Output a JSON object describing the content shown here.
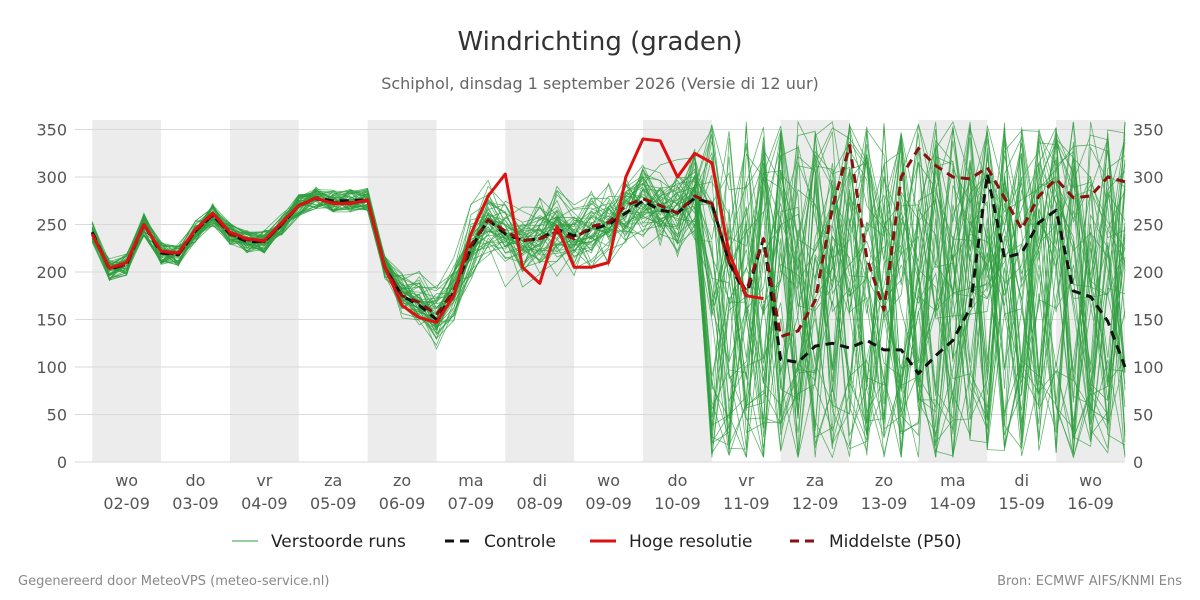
{
  "chart_data": {
    "type": "line",
    "title": "Windrichting (graden)",
    "subtitle": "Schiphol, dinsdag  1 september 2026 (Versie di 12 uur)",
    "ylim": [
      0,
      360
    ],
    "y_ticks": [
      0,
      50,
      100,
      150,
      200,
      250,
      300,
      350
    ],
    "x_day_labels": [
      {
        "dow": "wo",
        "date": "02-09",
        "day": 1
      },
      {
        "dow": "do",
        "date": "03-09",
        "day": 2
      },
      {
        "dow": "vr",
        "date": "04-09",
        "day": 3
      },
      {
        "dow": "za",
        "date": "05-09",
        "day": 4
      },
      {
        "dow": "zo",
        "date": "06-09",
        "day": 5
      },
      {
        "dow": "ma",
        "date": "07-09",
        "day": 6
      },
      {
        "dow": "di",
        "date": "08-09",
        "day": 7
      },
      {
        "dow": "wo",
        "date": "09-09",
        "day": 8
      },
      {
        "dow": "do",
        "date": "10-09",
        "day": 9
      },
      {
        "dow": "vr",
        "date": "11-09",
        "day": 10
      },
      {
        "dow": "za",
        "date": "12-09",
        "day": 11
      },
      {
        "dow": "zo",
        "date": "13-09",
        "day": 12
      },
      {
        "dow": "ma",
        "date": "14-09",
        "day": 13
      },
      {
        "dow": "di",
        "date": "15-09",
        "day": 14
      },
      {
        "dow": "wo",
        "date": "16-09",
        "day": 15
      }
    ],
    "shaded_days": [
      1,
      3,
      5,
      7,
      9,
      11,
      13,
      15
    ],
    "x_range_days": [
      0.25,
      15.5
    ],
    "series": [
      {
        "name": "Controle",
        "color": "#111111",
        "style": "dashed",
        "points": [
          [
            0.5,
            242
          ],
          [
            0.75,
            203
          ],
          [
            1.0,
            208
          ],
          [
            1.25,
            250
          ],
          [
            1.5,
            220
          ],
          [
            1.75,
            218
          ],
          [
            2.0,
            243
          ],
          [
            2.25,
            260
          ],
          [
            2.5,
            240
          ],
          [
            2.75,
            232
          ],
          [
            3.0,
            232
          ],
          [
            3.25,
            250
          ],
          [
            3.5,
            270
          ],
          [
            3.75,
            278
          ],
          [
            4.0,
            275
          ],
          [
            4.25,
            275
          ],
          [
            4.5,
            276
          ],
          [
            4.75,
            205
          ],
          [
            5.0,
            175
          ],
          [
            5.25,
            165
          ],
          [
            5.5,
            150
          ],
          [
            5.75,
            178
          ],
          [
            6.0,
            225
          ],
          [
            6.25,
            255
          ],
          [
            6.5,
            240
          ],
          [
            6.75,
            233
          ],
          [
            7.0,
            235
          ],
          [
            7.25,
            245
          ],
          [
            7.5,
            238
          ],
          [
            7.75,
            245
          ],
          [
            8.0,
            250
          ],
          [
            8.25,
            262
          ],
          [
            8.5,
            275
          ],
          [
            8.75,
            265
          ],
          [
            9.0,
            262
          ],
          [
            9.25,
            278
          ],
          [
            9.5,
            272
          ],
          [
            9.75,
            210
          ],
          [
            10.0,
            175
          ],
          [
            10.25,
            235
          ],
          [
            10.5,
            108
          ],
          [
            10.75,
            105
          ],
          [
            11.0,
            122
          ],
          [
            11.25,
            125
          ],
          [
            11.5,
            120
          ],
          [
            11.75,
            128
          ],
          [
            12.0,
            118
          ],
          [
            12.25,
            118
          ],
          [
            12.5,
            93
          ],
          [
            12.75,
            112
          ],
          [
            13.0,
            128
          ],
          [
            13.25,
            162
          ],
          [
            13.5,
            303
          ],
          [
            13.75,
            215
          ],
          [
            14.0,
            220
          ],
          [
            14.25,
            252
          ],
          [
            14.5,
            265
          ],
          [
            14.75,
            180
          ],
          [
            15.0,
            174
          ],
          [
            15.25,
            148
          ],
          [
            15.5,
            100
          ]
        ]
      },
      {
        "name": "Hoge resolutie",
        "color": "#dd1111",
        "style": "solid",
        "points": [
          [
            0.5,
            240
          ],
          [
            0.75,
            204
          ],
          [
            1.0,
            210
          ],
          [
            1.25,
            250
          ],
          [
            1.5,
            222
          ],
          [
            1.75,
            220
          ],
          [
            2.0,
            245
          ],
          [
            2.25,
            262
          ],
          [
            2.5,
            242
          ],
          [
            2.75,
            235
          ],
          [
            3.0,
            233
          ],
          [
            3.25,
            252
          ],
          [
            3.5,
            270
          ],
          [
            3.75,
            278
          ],
          [
            4.0,
            272
          ],
          [
            4.25,
            272
          ],
          [
            4.5,
            276
          ],
          [
            4.75,
            205
          ],
          [
            5.0,
            165
          ],
          [
            5.25,
            152
          ],
          [
            5.5,
            147
          ],
          [
            5.75,
            175
          ],
          [
            6.0,
            240
          ],
          [
            6.25,
            280
          ],
          [
            6.5,
            303
          ],
          [
            6.75,
            205
          ],
          [
            7.0,
            188
          ],
          [
            7.25,
            248
          ],
          [
            7.5,
            205
          ],
          [
            7.75,
            205
          ],
          [
            8.0,
            210
          ],
          [
            8.25,
            300
          ],
          [
            8.5,
            340
          ],
          [
            8.75,
            338
          ],
          [
            9.0,
            300
          ],
          [
            9.25,
            325
          ],
          [
            9.5,
            315
          ],
          [
            9.75,
            220
          ],
          [
            10.0,
            175
          ],
          [
            10.25,
            172
          ]
        ]
      },
      {
        "name": "Middelste (P50)",
        "color": "#8b1010",
        "style": "dashed",
        "points": [
          [
            0.5,
            240
          ],
          [
            0.75,
            204
          ],
          [
            1.0,
            208
          ],
          [
            1.25,
            250
          ],
          [
            1.5,
            222
          ],
          [
            1.75,
            218
          ],
          [
            2.0,
            243
          ],
          [
            2.25,
            260
          ],
          [
            2.5,
            240
          ],
          [
            2.75,
            234
          ],
          [
            3.0,
            232
          ],
          [
            3.25,
            250
          ],
          [
            3.5,
            270
          ],
          [
            3.75,
            277
          ],
          [
            4.0,
            273
          ],
          [
            4.25,
            273
          ],
          [
            4.5,
            275
          ],
          [
            4.75,
            205
          ],
          [
            5.0,
            175
          ],
          [
            5.25,
            168
          ],
          [
            5.5,
            155
          ],
          [
            5.75,
            180
          ],
          [
            6.0,
            228
          ],
          [
            6.25,
            255
          ],
          [
            6.5,
            243
          ],
          [
            6.75,
            233
          ],
          [
            7.0,
            235
          ],
          [
            7.25,
            242
          ],
          [
            7.5,
            235
          ],
          [
            7.75,
            248
          ],
          [
            8.0,
            252
          ],
          [
            8.25,
            270
          ],
          [
            8.5,
            277
          ],
          [
            8.75,
            270
          ],
          [
            9.0,
            262
          ],
          [
            9.25,
            280
          ],
          [
            9.5,
            272
          ],
          [
            9.75,
            210
          ],
          [
            10.0,
            180
          ],
          [
            10.25,
            235
          ],
          [
            10.5,
            132
          ],
          [
            10.75,
            138
          ],
          [
            11.0,
            170
          ],
          [
            11.25,
            268
          ],
          [
            11.5,
            333
          ],
          [
            11.75,
            215
          ],
          [
            12.0,
            160
          ],
          [
            12.25,
            300
          ],
          [
            12.5,
            330
          ],
          [
            12.75,
            312
          ],
          [
            13.0,
            300
          ],
          [
            13.25,
            298
          ],
          [
            13.5,
            310
          ],
          [
            13.75,
            278
          ],
          [
            14.0,
            245
          ],
          [
            14.25,
            280
          ],
          [
            14.5,
            298
          ],
          [
            14.75,
            278
          ],
          [
            15.0,
            280
          ],
          [
            15.25,
            300
          ],
          [
            15.5,
            295
          ]
        ]
      }
    ],
    "ensemble": {
      "name": "Verstoorde runs",
      "color": "#2e9e3e",
      "member_count": 50,
      "start_day": 0.5,
      "end_day": 15.5,
      "step_days": 0.25
    }
  },
  "legend": [
    {
      "label": "Verstoorde runs",
      "color": "#2e9e3e",
      "style": "thin"
    },
    {
      "label": "Controle",
      "color": "#111111",
      "style": "dashed"
    },
    {
      "label": "Hoge resolutie",
      "color": "#dd1111",
      "style": "solid"
    },
    {
      "label": "Middelste (P50)",
      "color": "#8b1010",
      "style": "dashed"
    }
  ],
  "footer": {
    "left": "Gegenereerd door MeteoVPS (meteo-service.nl)",
    "right": "Bron: ECMWF AIFS/KNMI Ens"
  }
}
